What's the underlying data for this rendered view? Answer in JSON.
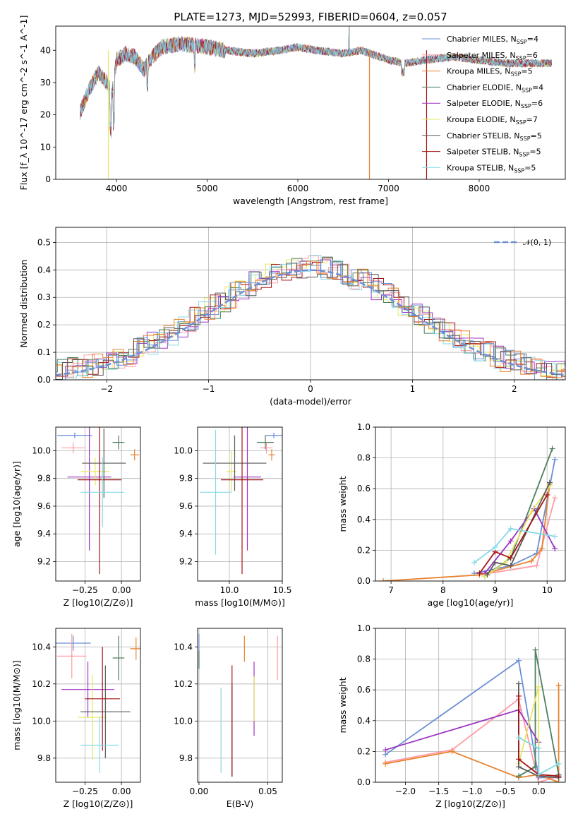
{
  "title": "PLATE=1273, MJD=52993, FIBERID=0604, z=0.057",
  "colors": [
    "#6b8fd6",
    "#ff9aa2",
    "#e8822d",
    "#4f7f5f",
    "#9b35c2",
    "#e7e760",
    "#5a5a5a",
    "#a31515",
    "#86d9e5"
  ],
  "chart_data": [
    {
      "id": "spectrum",
      "type": "line",
      "title": "PLATE=1273, MJD=52993, FIBERID=0604, z=0.057",
      "xlabel": "wavelength [Angstrom, rest frame]",
      "ylabel": "Flux [f_λ 10^-17 erg cm^-2 s^-1 A^-1]",
      "xlim": [
        3330,
        8950
      ],
      "ylim": [
        0,
        47.5
      ],
      "xticks": [
        "4000",
        "5000",
        "6000",
        "7000",
        "8000"
      ],
      "yticks": [
        "0",
        "10",
        "20",
        "30",
        "40"
      ],
      "continuum": {
        "x": [
          3600,
          3700,
          3800,
          3900,
          3950,
          4000,
          4100,
          4200,
          4300,
          4400,
          4500,
          4700,
          5000,
          5200,
          5500,
          5800,
          6000,
          6200,
          6500,
          6700,
          6900,
          7000,
          7200,
          7400,
          7700,
          8000,
          8300,
          8700
        ],
        "y": [
          21,
          28,
          33,
          30,
          26,
          37,
          39,
          38,
          34,
          38,
          41,
          42,
          41,
          40,
          39,
          40,
          41,
          40,
          39,
          40,
          38,
          37,
          36,
          37,
          38,
          37,
          36,
          36
        ]
      },
      "legend": [
        {
          "label": "Chabrier MILES, N",
          "sub": "SSP",
          "n": "=4"
        },
        {
          "label": "Salpeter MILES, N",
          "sub": "SSP",
          "n": "=6"
        },
        {
          "label": "Kroupa MILES, N",
          "sub": "SSP",
          "n": "=5"
        },
        {
          "label": "Chabrier ELODIE, N",
          "sub": "SSP",
          "n": "=4"
        },
        {
          "label": "Salpeter ELODIE, N",
          "sub": "SSP",
          "n": "=6"
        },
        {
          "label": "Kroupa ELODIE, N",
          "sub": "SSP",
          "n": "=7"
        },
        {
          "label": "Chabrier STELIB, N",
          "sub": "SSP",
          "n": "=5"
        },
        {
          "label": "Salpeter STELIB, N",
          "sub": "SSP",
          "n": "=5"
        },
        {
          "label": "Kroupa STELIB, N",
          "sub": "SSP",
          "n": "=5"
        }
      ],
      "legend_position": "upper right",
      "grid": false
    },
    {
      "id": "residuals",
      "type": "line",
      "xlabel": "(data-model)/error",
      "ylabel": "Normed distribution",
      "xlim": [
        -2.5,
        2.5
      ],
      "ylim": [
        0,
        0.555
      ],
      "xticks": [
        "−2",
        "−1",
        "0",
        "1",
        "2"
      ],
      "yticks": [
        "0.0",
        "0.1",
        "0.2",
        "0.3",
        "0.4",
        "0.5"
      ],
      "legend": [
        "𝒩(0, 1)"
      ],
      "legend_position": "upper right",
      "grid": true
    },
    {
      "id": "age_vs_Z",
      "type": "scatter",
      "xlabel": "Z [log10(Z/Z⊙)]",
      "ylabel": "age [log10(age/yr)]",
      "xlim": [
        -0.45,
        0.13
      ],
      "ylim": [
        9.06,
        10.17
      ],
      "xticks": [
        "−0.25",
        "0.00"
      ],
      "yticks": [
        "9.2",
        "9.4",
        "9.6",
        "9.8",
        "10.0"
      ],
      "points": [
        {
          "x": -0.32,
          "y": 10.11,
          "xerr": 0.12,
          "yerr": 0.02
        },
        {
          "x": -0.33,
          "y": 10.02,
          "xerr": 0.08,
          "yerr": 0.04
        },
        {
          "x": 0.09,
          "y": 9.97,
          "xerr": 0.03,
          "yerr": 0.04
        },
        {
          "x": -0.02,
          "y": 10.06,
          "xerr": 0.04,
          "yerr": 0.05
        },
        {
          "x": -0.22,
          "y": 9.81,
          "xerr": 0.15,
          "yerr": 0.53
        },
        {
          "x": -0.18,
          "y": 9.85,
          "xerr": 0.1,
          "yerr": 0.1
        },
        {
          "x": -0.12,
          "y": 9.91,
          "xerr": 0.15,
          "yerr": 0.25
        },
        {
          "x": -0.15,
          "y": 9.79,
          "xerr": 0.15,
          "yerr": 0.68
        },
        {
          "x": -0.13,
          "y": 9.7,
          "xerr": 0.15,
          "yerr": 0.25
        }
      ],
      "grid": true
    },
    {
      "id": "age_vs_mass",
      "type": "scatter",
      "xlabel": "mass [log10(M/M⊙)]",
      "ylabel": "",
      "xlim": [
        9.7,
        10.5
      ],
      "ylim": [
        9.06,
        10.17
      ],
      "xticks": [
        "10.0",
        "10.5"
      ],
      "yticks": [
        "9.2",
        "9.4",
        "9.6",
        "9.8",
        "10.0"
      ],
      "points": [
        {
          "x": 10.42,
          "y": 10.11,
          "xerr": 0.08,
          "yerr": 0.02
        },
        {
          "x": 10.35,
          "y": 10.02,
          "xerr": 0.06,
          "yerr": 0.04
        },
        {
          "x": 10.4,
          "y": 9.97,
          "xerr": 0.03,
          "yerr": 0.04
        },
        {
          "x": 10.34,
          "y": 10.06,
          "xerr": 0.08,
          "yerr": 0.05
        },
        {
          "x": 10.17,
          "y": 9.81,
          "xerr": 0.13,
          "yerr": 0.53
        },
        {
          "x": 10.02,
          "y": 9.85,
          "xerr": 0.05,
          "yerr": 0.15
        },
        {
          "x": 10.05,
          "y": 9.91,
          "xerr": 0.3,
          "yerr": 0.2
        },
        {
          "x": 10.12,
          "y": 9.79,
          "xerr": 0.2,
          "yerr": 0.68
        },
        {
          "x": 9.87,
          "y": 9.7,
          "xerr": 0.15,
          "yerr": 0.45
        }
      ],
      "grid": true
    },
    {
      "id": "weight_vs_age",
      "type": "line",
      "xlabel": "age [log10(age/yr)]",
      "ylabel": "mass weight",
      "xlim": [
        6.7,
        10.35
      ],
      "ylim": [
        0,
        1.0
      ],
      "xticks": [
        "7",
        "8",
        "9",
        "10"
      ],
      "yticks": [
        "0.0",
        "0.2",
        "0.4",
        "0.6",
        "0.8",
        "1.0"
      ],
      "series": [
        {
          "x": [
            8.6,
            9.3,
            9.8,
            10.15
          ],
          "y": [
            0.05,
            0.1,
            0.18,
            0.79
          ]
        },
        {
          "x": [
            8.7,
            9.8,
            10.15
          ],
          "y": [
            0.04,
            0.1,
            0.54
          ]
        },
        {
          "x": [
            6.85,
            8.7,
            9.7,
            9.9,
            10.05
          ],
          "y": [
            0.0,
            0.04,
            0.13,
            0.21,
            0.63
          ]
        },
        {
          "x": [
            8.8,
            9.3,
            10.1
          ],
          "y": [
            0.03,
            0.15,
            0.86
          ]
        },
        {
          "x": [
            8.8,
            9.3,
            9.75,
            10.15
          ],
          "y": [
            0.05,
            0.26,
            0.47,
            0.21
          ]
        },
        {
          "x": [
            8.8,
            9.2,
            9.7,
            10.05
          ],
          "y": [
            0.03,
            0.12,
            0.45,
            0.62
          ]
        },
        {
          "x": [
            8.85,
            9.0,
            9.3,
            10.05
          ],
          "y": [
            0.04,
            0.12,
            0.1,
            0.64
          ]
        },
        {
          "x": [
            8.7,
            9.0,
            9.3,
            10.0
          ],
          "y": [
            0.05,
            0.19,
            0.15,
            0.56
          ]
        },
        {
          "x": [
            8.6,
            9.0,
            9.3,
            10.15
          ],
          "y": [
            0.12,
            0.22,
            0.34,
            0.29
          ]
        }
      ],
      "grid": true
    },
    {
      "id": "mass_vs_Z",
      "type": "scatter",
      "xlabel": "Z [log10(Z/Z⊙)]",
      "ylabel": "mass [log10(M/M⊙)]",
      "xlim": [
        -0.45,
        0.13
      ],
      "ylim": [
        9.67,
        10.5
      ],
      "xticks": [
        "−0.25",
        "0.00"
      ],
      "yticks": [
        "9.8",
        "10.0",
        "10.2",
        "10.4"
      ],
      "points": [
        {
          "x": -0.33,
          "y": 10.42,
          "xerr": 0.12,
          "yerr": 0.04
        },
        {
          "x": -0.34,
          "y": 10.35,
          "xerr": 0.1,
          "yerr": 0.12
        },
        {
          "x": 0.1,
          "y": 10.39,
          "xerr": 0.04,
          "yerr": 0.06
        },
        {
          "x": -0.02,
          "y": 10.34,
          "xerr": 0.04,
          "yerr": 0.12
        },
        {
          "x": -0.23,
          "y": 10.17,
          "xerr": 0.18,
          "yerr": 0.15
        },
        {
          "x": -0.2,
          "y": 10.02,
          "xerr": 0.1,
          "yerr": 0.23
        },
        {
          "x": -0.11,
          "y": 10.05,
          "xerr": 0.17,
          "yerr": 0.25
        },
        {
          "x": -0.13,
          "y": 10.12,
          "xerr": 0.12,
          "yerr": 0.28
        },
        {
          "x": -0.15,
          "y": 9.87,
          "xerr": 0.13,
          "yerr": 0.15
        }
      ],
      "grid": true
    },
    {
      "id": "mass_vs_EBV",
      "type": "scatter",
      "xlabel": "E(B-V)",
      "ylabel": "",
      "xlim": [
        -0.001,
        0.0605
      ],
      "ylim": [
        9.67,
        10.5
      ],
      "xticks": [
        "0.00",
        "0.05"
      ],
      "yticks": [
        "9.8",
        "10.0",
        "10.2",
        "10.4"
      ],
      "points": [
        {
          "x": 0.0,
          "y": 10.38,
          "yerr": 0.09
        },
        {
          "x": 0.057,
          "y": 10.34,
          "yerr": 0.12
        },
        {
          "x": 0.033,
          "y": 10.39,
          "yerr": 0.07
        },
        {
          "x": 0.0,
          "y": 10.33,
          "yerr": 0.05
        },
        {
          "x": 0.04,
          "y": 10.12,
          "yerr": 0.2
        },
        {
          "x": 0.04,
          "y": 10.12,
          "yerr": 0.12
        },
        {
          "x": 0.024,
          "y": 9.95,
          "yerr": 0.25
        },
        {
          "x": 0.024,
          "y": 10.0,
          "yerr": 0.3
        },
        {
          "x": 0.016,
          "y": 9.95,
          "yerr": 0.23
        }
      ],
      "grid": true
    },
    {
      "id": "weight_vs_Z",
      "type": "line",
      "xlabel": "Z [log10(Z/Z⊙)]",
      "ylabel": "mass weight",
      "xlim": [
        -2.45,
        0.4
      ],
      "ylim": [
        0,
        1.0
      ],
      "xticks": [
        "−2.0",
        "−1.5",
        "−1.0",
        "−0.5",
        "0.0"
      ],
      "yticks": [
        "0.0",
        "0.2",
        "0.4",
        "0.6",
        "0.8",
        "1.0"
      ],
      "series": [
        {
          "x": [
            -2.3,
            -0.3,
            0.0,
            0.3
          ],
          "y": [
            0.18,
            0.79,
            0.03,
            0.03
          ]
        },
        {
          "x": [
            -2.3,
            -1.3,
            -0.3,
            0.0,
            0.3
          ],
          "y": [
            0.13,
            0.21,
            0.54,
            0.0,
            0.04
          ]
        },
        {
          "x": [
            -2.3,
            -1.3,
            -0.3,
            0.0,
            0.3,
            0.3
          ],
          "y": [
            0.12,
            0.2,
            0.03,
            0.05,
            0.0,
            0.63
          ]
        },
        {
          "x": [
            -0.3,
            -0.05,
            -0.05,
            0.3
          ],
          "y": [
            0.04,
            0.1,
            0.86,
            0.05
          ]
        },
        {
          "x": [
            -2.3,
            -0.3,
            0.0,
            0.0
          ],
          "y": [
            0.21,
            0.47,
            0.26,
            0.05
          ]
        },
        {
          "x": [
            -0.3,
            0.0,
            0.0
          ],
          "y": [
            0.12,
            0.62,
            0.05
          ]
        },
        {
          "x": [
            -0.3,
            -0.3,
            0.0,
            0.3
          ],
          "y": [
            0.64,
            0.1,
            0.04,
            0.03
          ]
        },
        {
          "x": [
            -0.3,
            -0.3,
            0.0,
            0.3
          ],
          "y": [
            0.56,
            0.15,
            0.05,
            0.04
          ]
        },
        {
          "x": [
            -0.3,
            0.0,
            0.0,
            0.3
          ],
          "y": [
            0.29,
            0.22,
            0.05,
            0.12
          ]
        }
      ],
      "grid": true
    }
  ]
}
